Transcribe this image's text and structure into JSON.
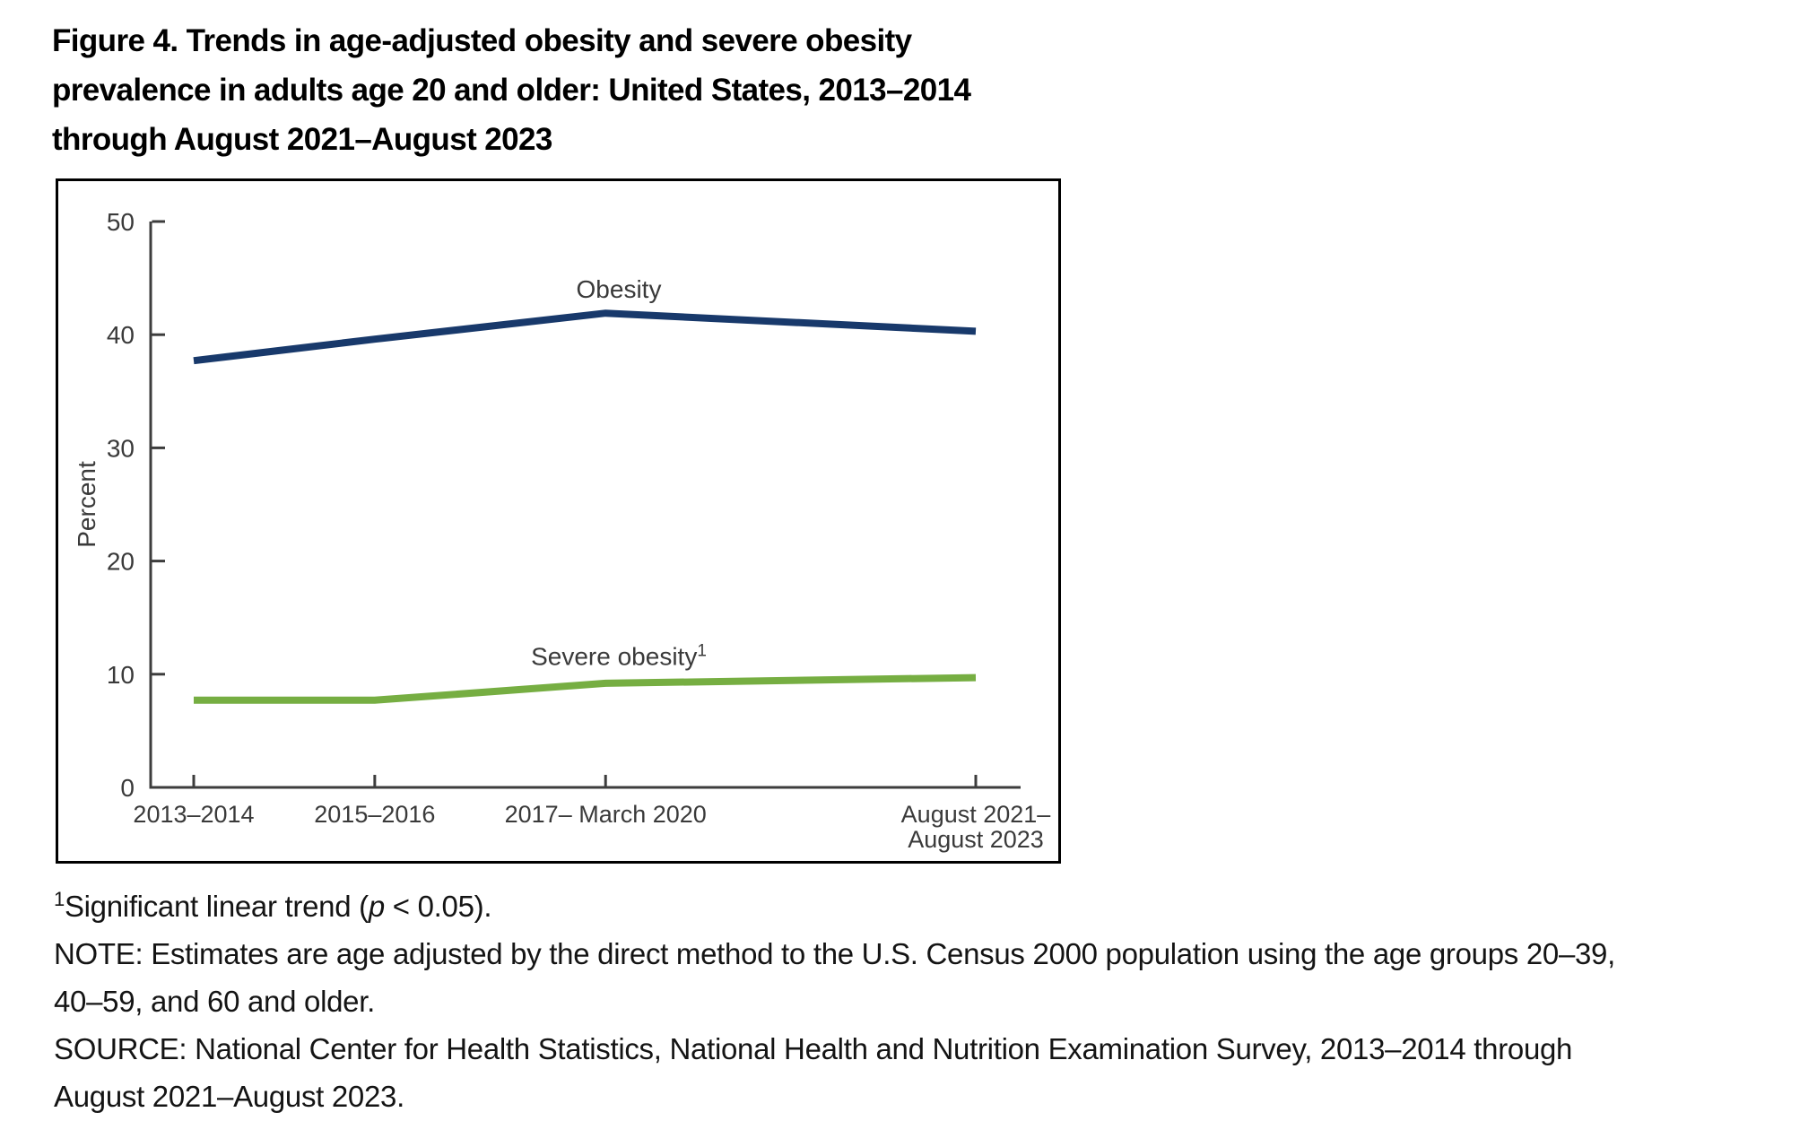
{
  "figure": {
    "title_lines": [
      "Figure 4. Trends in age-adjusted obesity and severe obesity",
      "prevalence in adults age 20 and older: United States, 2013–2014",
      "through August 2021–August 2023"
    ]
  },
  "chart_data": {
    "type": "line",
    "title": "",
    "xlabel": "",
    "ylabel": "Percent",
    "ylim": [
      0,
      50
    ],
    "yticks": [
      0,
      10,
      20,
      30,
      40,
      50
    ],
    "grid": false,
    "legend_position": "inline-labels",
    "categories": [
      "2013–2014",
      "2015–2016",
      "2017– March 2020",
      "August 2021–August 2023"
    ],
    "x_tick_labels": [
      [
        "2013–2014"
      ],
      [
        "2015–2016"
      ],
      [
        "2017– March 2020"
      ],
      [
        "August 2021–",
        "August 2023"
      ]
    ],
    "x_numeric": [
      2014.0,
      2016.0,
      2018.55,
      2022.64
    ],
    "series": [
      {
        "name": "Obesity",
        "label": "Obesity",
        "footnote_marker": "",
        "values": [
          37.7,
          39.6,
          41.9,
          40.3
        ],
        "color": "#18396b"
      },
      {
        "name": "Severe obesity",
        "label": "Severe obesity",
        "footnote_marker": "1",
        "values": [
          7.7,
          7.7,
          9.2,
          9.7
        ],
        "color": "#76ae42"
      }
    ],
    "axis_color": "#3d3d3d",
    "tick_label_color": "#3a3a3a"
  },
  "footnotes": {
    "marker": "1",
    "sig_pre": "Significant linear trend (",
    "sig_italic": "p",
    "sig_post": " < 0.05).",
    "note_lines": [
      "NOTE: Estimates are age adjusted by the direct method to the U.S. Census 2000 population using the age groups 20–39,",
      "40–59, and 60 and older."
    ],
    "source_lines": [
      "SOURCE: National Center for Health Statistics, National Health and Nutrition Examination Survey, 2013–2014 through",
      "August 2021–August 2023."
    ]
  }
}
